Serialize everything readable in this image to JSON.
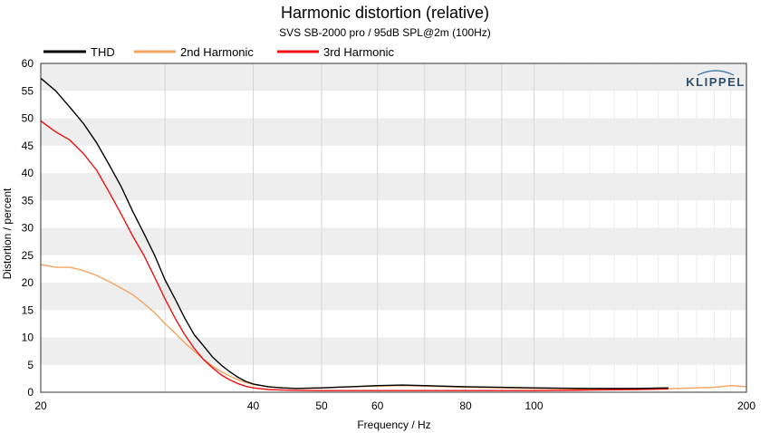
{
  "chart_data": {
    "type": "line",
    "title": "Harmonic distortion (relative)",
    "subtitle": "SVS SB-2000 pro / 95dB SPL@2m (100Hz)",
    "xlabel": "Frequency / Hz",
    "ylabel": "Distortion / percent",
    "xscale": "log",
    "xlim": [
      20,
      200
    ],
    "ylim": [
      0,
      60
    ],
    "xticks": [
      20,
      40,
      50,
      60,
      80,
      100,
      200
    ],
    "yticks": [
      0,
      5,
      10,
      15,
      20,
      25,
      30,
      35,
      40,
      45,
      50,
      55,
      60
    ],
    "grid": true,
    "legend_position": "top-left",
    "watermark": "KLIPPEL",
    "series": [
      {
        "name": "THD",
        "color": "#000000",
        "points": [
          [
            20,
            57.3
          ],
          [
            21,
            55
          ],
          [
            22,
            52
          ],
          [
            23,
            49
          ],
          [
            24,
            45.5
          ],
          [
            25,
            41.5
          ],
          [
            26,
            37.5
          ],
          [
            27,
            33
          ],
          [
            28,
            29
          ],
          [
            29,
            25
          ],
          [
            30,
            20.5
          ],
          [
            31,
            17
          ],
          [
            32,
            13.5
          ],
          [
            33,
            10.5
          ],
          [
            34,
            8.5
          ],
          [
            35,
            6.5
          ],
          [
            36,
            5
          ],
          [
            37,
            3.8
          ],
          [
            38,
            2.8
          ],
          [
            39,
            2
          ],
          [
            40,
            1.5
          ],
          [
            42,
            1.0
          ],
          [
            44,
            0.8
          ],
          [
            46,
            0.7
          ],
          [
            50,
            0.8
          ],
          [
            55,
            1.0
          ],
          [
            60,
            1.2
          ],
          [
            65,
            1.3
          ],
          [
            70,
            1.2
          ],
          [
            80,
            1.0
          ],
          [
            90,
            0.9
          ],
          [
            100,
            0.8
          ],
          [
            120,
            0.7
          ],
          [
            140,
            0.7
          ],
          [
            155,
            0.8
          ]
        ]
      },
      {
        "name": "2nd Harmonic",
        "color": "#f4a460",
        "points": [
          [
            20,
            23.3
          ],
          [
            21,
            22.8
          ],
          [
            22,
            22.8
          ],
          [
            23,
            22.2
          ],
          [
            24,
            21.3
          ],
          [
            25,
            20.2
          ],
          [
            26,
            19
          ],
          [
            27,
            17.8
          ],
          [
            28,
            16.2
          ],
          [
            29,
            14.5
          ],
          [
            30,
            12.5
          ],
          [
            31,
            10.8
          ],
          [
            32,
            9
          ],
          [
            33,
            7.5
          ],
          [
            34,
            6
          ],
          [
            35,
            4.8
          ],
          [
            36,
            3.8
          ],
          [
            37,
            3
          ],
          [
            38,
            2.3
          ],
          [
            39,
            1.8
          ],
          [
            40,
            1.4
          ],
          [
            42,
            1.0
          ],
          [
            44,
            0.8
          ],
          [
            46,
            0.7
          ],
          [
            50,
            0.8
          ],
          [
            55,
            1.0
          ],
          [
            60,
            1.1
          ],
          [
            65,
            1.2
          ],
          [
            70,
            1.1
          ],
          [
            80,
            0.9
          ],
          [
            90,
            0.8
          ],
          [
            100,
            0.7
          ],
          [
            120,
            0.6
          ],
          [
            140,
            0.6
          ],
          [
            160,
            0.7
          ],
          [
            180,
            0.9
          ],
          [
            190,
            1.2
          ],
          [
            200,
            1.0
          ]
        ]
      },
      {
        "name": "3rd Harmonic",
        "color": "#ee1111",
        "points": [
          [
            20,
            49.5
          ],
          [
            21,
            47.5
          ],
          [
            22,
            46
          ],
          [
            23,
            43.5
          ],
          [
            24,
            40.5
          ],
          [
            25,
            36.5
          ],
          [
            26,
            32.5
          ],
          [
            27,
            28.5
          ],
          [
            28,
            25
          ],
          [
            29,
            21
          ],
          [
            30,
            17
          ],
          [
            31,
            13.5
          ],
          [
            32,
            10.5
          ],
          [
            33,
            8
          ],
          [
            34,
            6
          ],
          [
            35,
            4.5
          ],
          [
            36,
            3.2
          ],
          [
            37,
            2.3
          ],
          [
            38,
            1.6
          ],
          [
            39,
            1.1
          ],
          [
            40,
            0.8
          ],
          [
            42,
            0.5
          ],
          [
            44,
            0.4
          ],
          [
            46,
            0.35
          ],
          [
            50,
            0.3
          ],
          [
            55,
            0.3
          ],
          [
            60,
            0.3
          ],
          [
            70,
            0.3
          ],
          [
            80,
            0.3
          ],
          [
            90,
            0.3
          ],
          [
            100,
            0.3
          ],
          [
            120,
            0.4
          ],
          [
            140,
            0.5
          ],
          [
            155,
            0.6
          ]
        ]
      }
    ]
  }
}
